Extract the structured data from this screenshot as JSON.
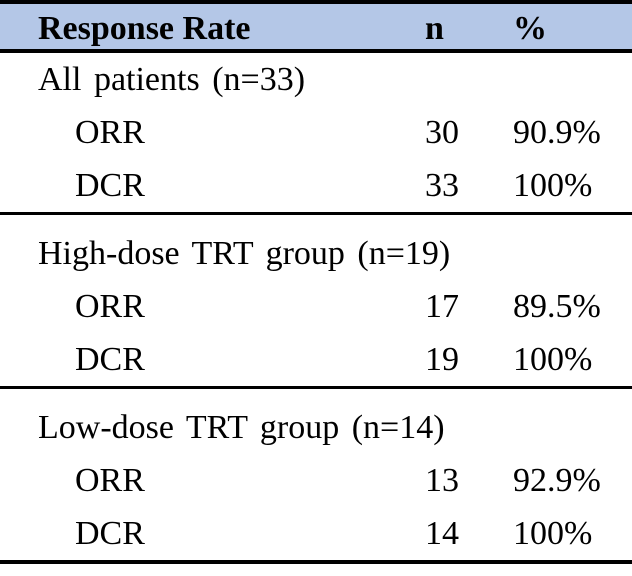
{
  "table": {
    "header": {
      "label": "Response Rate",
      "col_n": "n",
      "col_pct": "%"
    },
    "sections": [
      {
        "group": "All patients (n=33)",
        "rows": [
          {
            "label": "ORR",
            "n": "30",
            "pct": "90.9%"
          },
          {
            "label": "DCR",
            "n": "33",
            "pct": "100%"
          }
        ]
      },
      {
        "group": "High-dose TRT group (n=19)",
        "rows": [
          {
            "label": "ORR",
            "n": "17",
            "pct": "89.5%"
          },
          {
            "label": "DCR",
            "n": "19",
            "pct": "100%"
          }
        ]
      },
      {
        "group": "Low-dose TRT group (n=14)",
        "rows": [
          {
            "label": "ORR",
            "n": "13",
            "pct": "92.9%"
          },
          {
            "label": "DCR",
            "n": "14",
            "pct": "100%"
          }
        ]
      }
    ],
    "colors": {
      "header_bg": "#b4c7e7",
      "border": "#000000",
      "text": "#000000"
    }
  },
  "chart_data": {
    "type": "table",
    "title": "Response Rate",
    "columns": [
      "Response Rate",
      "n",
      "%"
    ],
    "rows": [
      [
        "All patients (n=33)",
        "",
        ""
      ],
      [
        "ORR",
        "30",
        "90.9%"
      ],
      [
        "DCR",
        "33",
        "100%"
      ],
      [
        "High-dose TRT group (n=19)",
        "",
        ""
      ],
      [
        "ORR",
        "17",
        "89.5%"
      ],
      [
        "DCR",
        "19",
        "100%"
      ],
      [
        "Low-dose TRT group (n=14)",
        "",
        ""
      ],
      [
        "ORR",
        "13",
        "92.9%"
      ],
      [
        "DCR",
        "14",
        "100%"
      ]
    ]
  }
}
